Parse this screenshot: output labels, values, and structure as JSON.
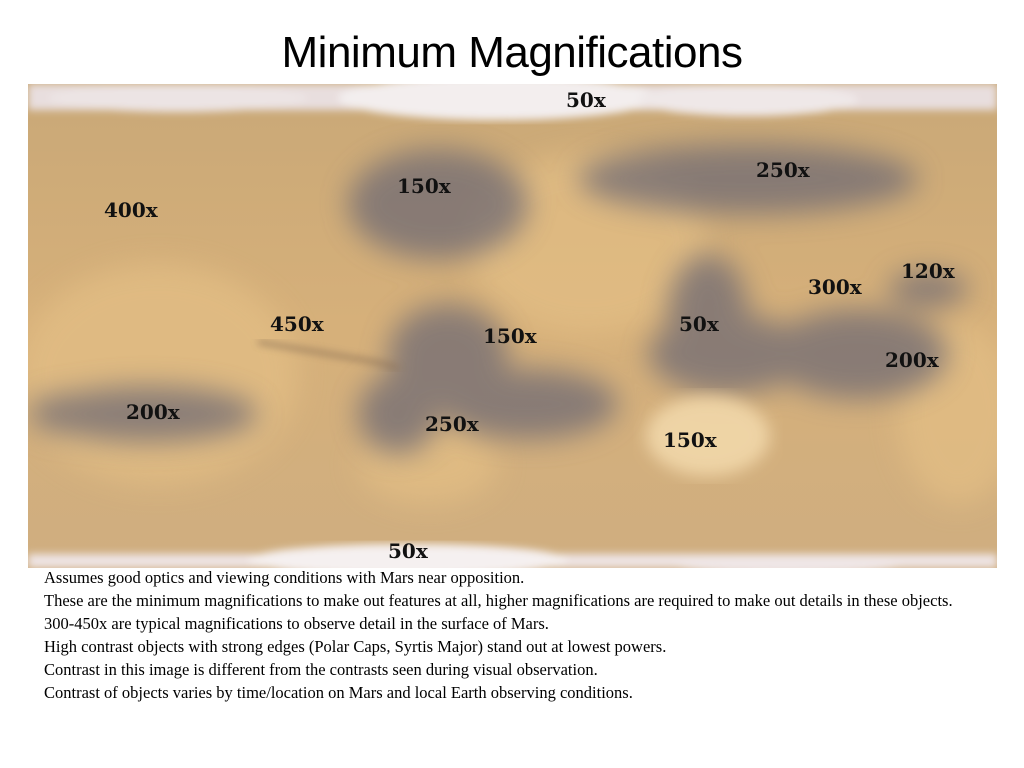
{
  "title": "Minimum Magnifications",
  "map": {
    "labels": [
      {
        "id": "north-polar-cap",
        "text": "50x"
      },
      {
        "id": "north-150",
        "text": "150x"
      },
      {
        "id": "north-250",
        "text": "250x"
      },
      {
        "id": "west-400",
        "text": "400x"
      },
      {
        "id": "east-120",
        "text": "120x"
      },
      {
        "id": "east-300",
        "text": "300x"
      },
      {
        "id": "valles-450",
        "text": "450x"
      },
      {
        "id": "center-150",
        "text": "150x"
      },
      {
        "id": "syrtis-50",
        "text": "50x"
      },
      {
        "id": "east-200",
        "text": "200x"
      },
      {
        "id": "west-200",
        "text": "200x"
      },
      {
        "id": "south-250",
        "text": "250x"
      },
      {
        "id": "hellas-150",
        "text": "150x"
      },
      {
        "id": "south-polar-cap",
        "text": "50x"
      }
    ]
  },
  "notes": [
    "Assumes good optics and viewing conditions with Mars near opposition.",
    "These are the minimum magnifications to make out features at all, higher magnifications are required to make out details in these objects.",
    "300-450x are typical magnifications to observe detail in the surface of Mars.",
    "High contrast objects with strong edges (Polar Caps, Syrtis Major) stand out at lowest powers.",
    "Contrast in this image is different from the contrasts seen during visual observation.",
    "Contrast of objects varies by time/location on Mars and local Earth observing conditions."
  ]
}
